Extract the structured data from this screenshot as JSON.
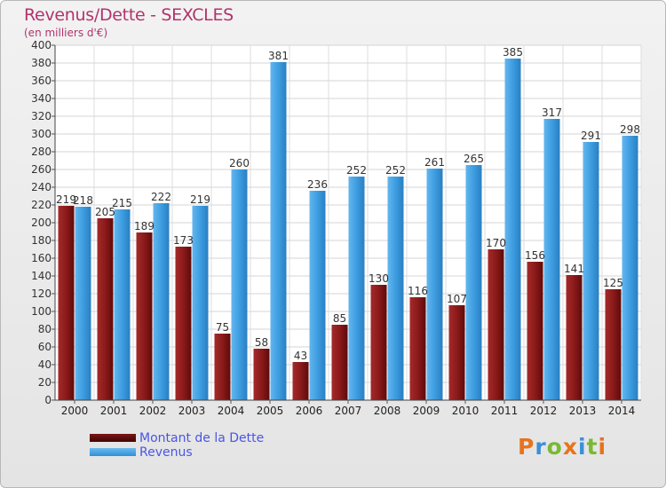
{
  "title": "Revenus/Dette - SEXCLES",
  "subtitle": "(en milliers d'€)",
  "logo": "Proxiti",
  "colors": {
    "dette": "#8b1a1a",
    "revenus": "#3d9de0",
    "title": "#b2336c",
    "legend_text": "#4a55e6"
  },
  "legend": [
    {
      "label": "Montant de la Dette",
      "color": "#6b0e0e"
    },
    {
      "label": "Revenus",
      "color": "#3d9de0"
    }
  ],
  "chart_data": {
    "type": "bar",
    "categories": [
      "2000",
      "2001",
      "2002",
      "2003",
      "2004",
      "2005",
      "2006",
      "2007",
      "2008",
      "2009",
      "2010",
      "2011",
      "2012",
      "2013",
      "2014"
    ],
    "series": [
      {
        "name": "Montant de la Dette",
        "values": [
          219,
          205,
          189,
          173,
          75,
          58,
          43,
          85,
          130,
          116,
          107,
          170,
          156,
          141,
          125
        ]
      },
      {
        "name": "Revenus",
        "values": [
          218,
          215,
          222,
          219,
          260,
          381,
          236,
          252,
          252,
          261,
          265,
          385,
          317,
          291,
          298
        ]
      }
    ],
    "ylim": [
      0,
      400
    ],
    "yticks": [
      0,
      20,
      40,
      60,
      80,
      100,
      120,
      140,
      160,
      180,
      200,
      220,
      240,
      260,
      280,
      300,
      320,
      340,
      360,
      380,
      400
    ],
    "grid": true,
    "legend_position": "bottom-left"
  }
}
